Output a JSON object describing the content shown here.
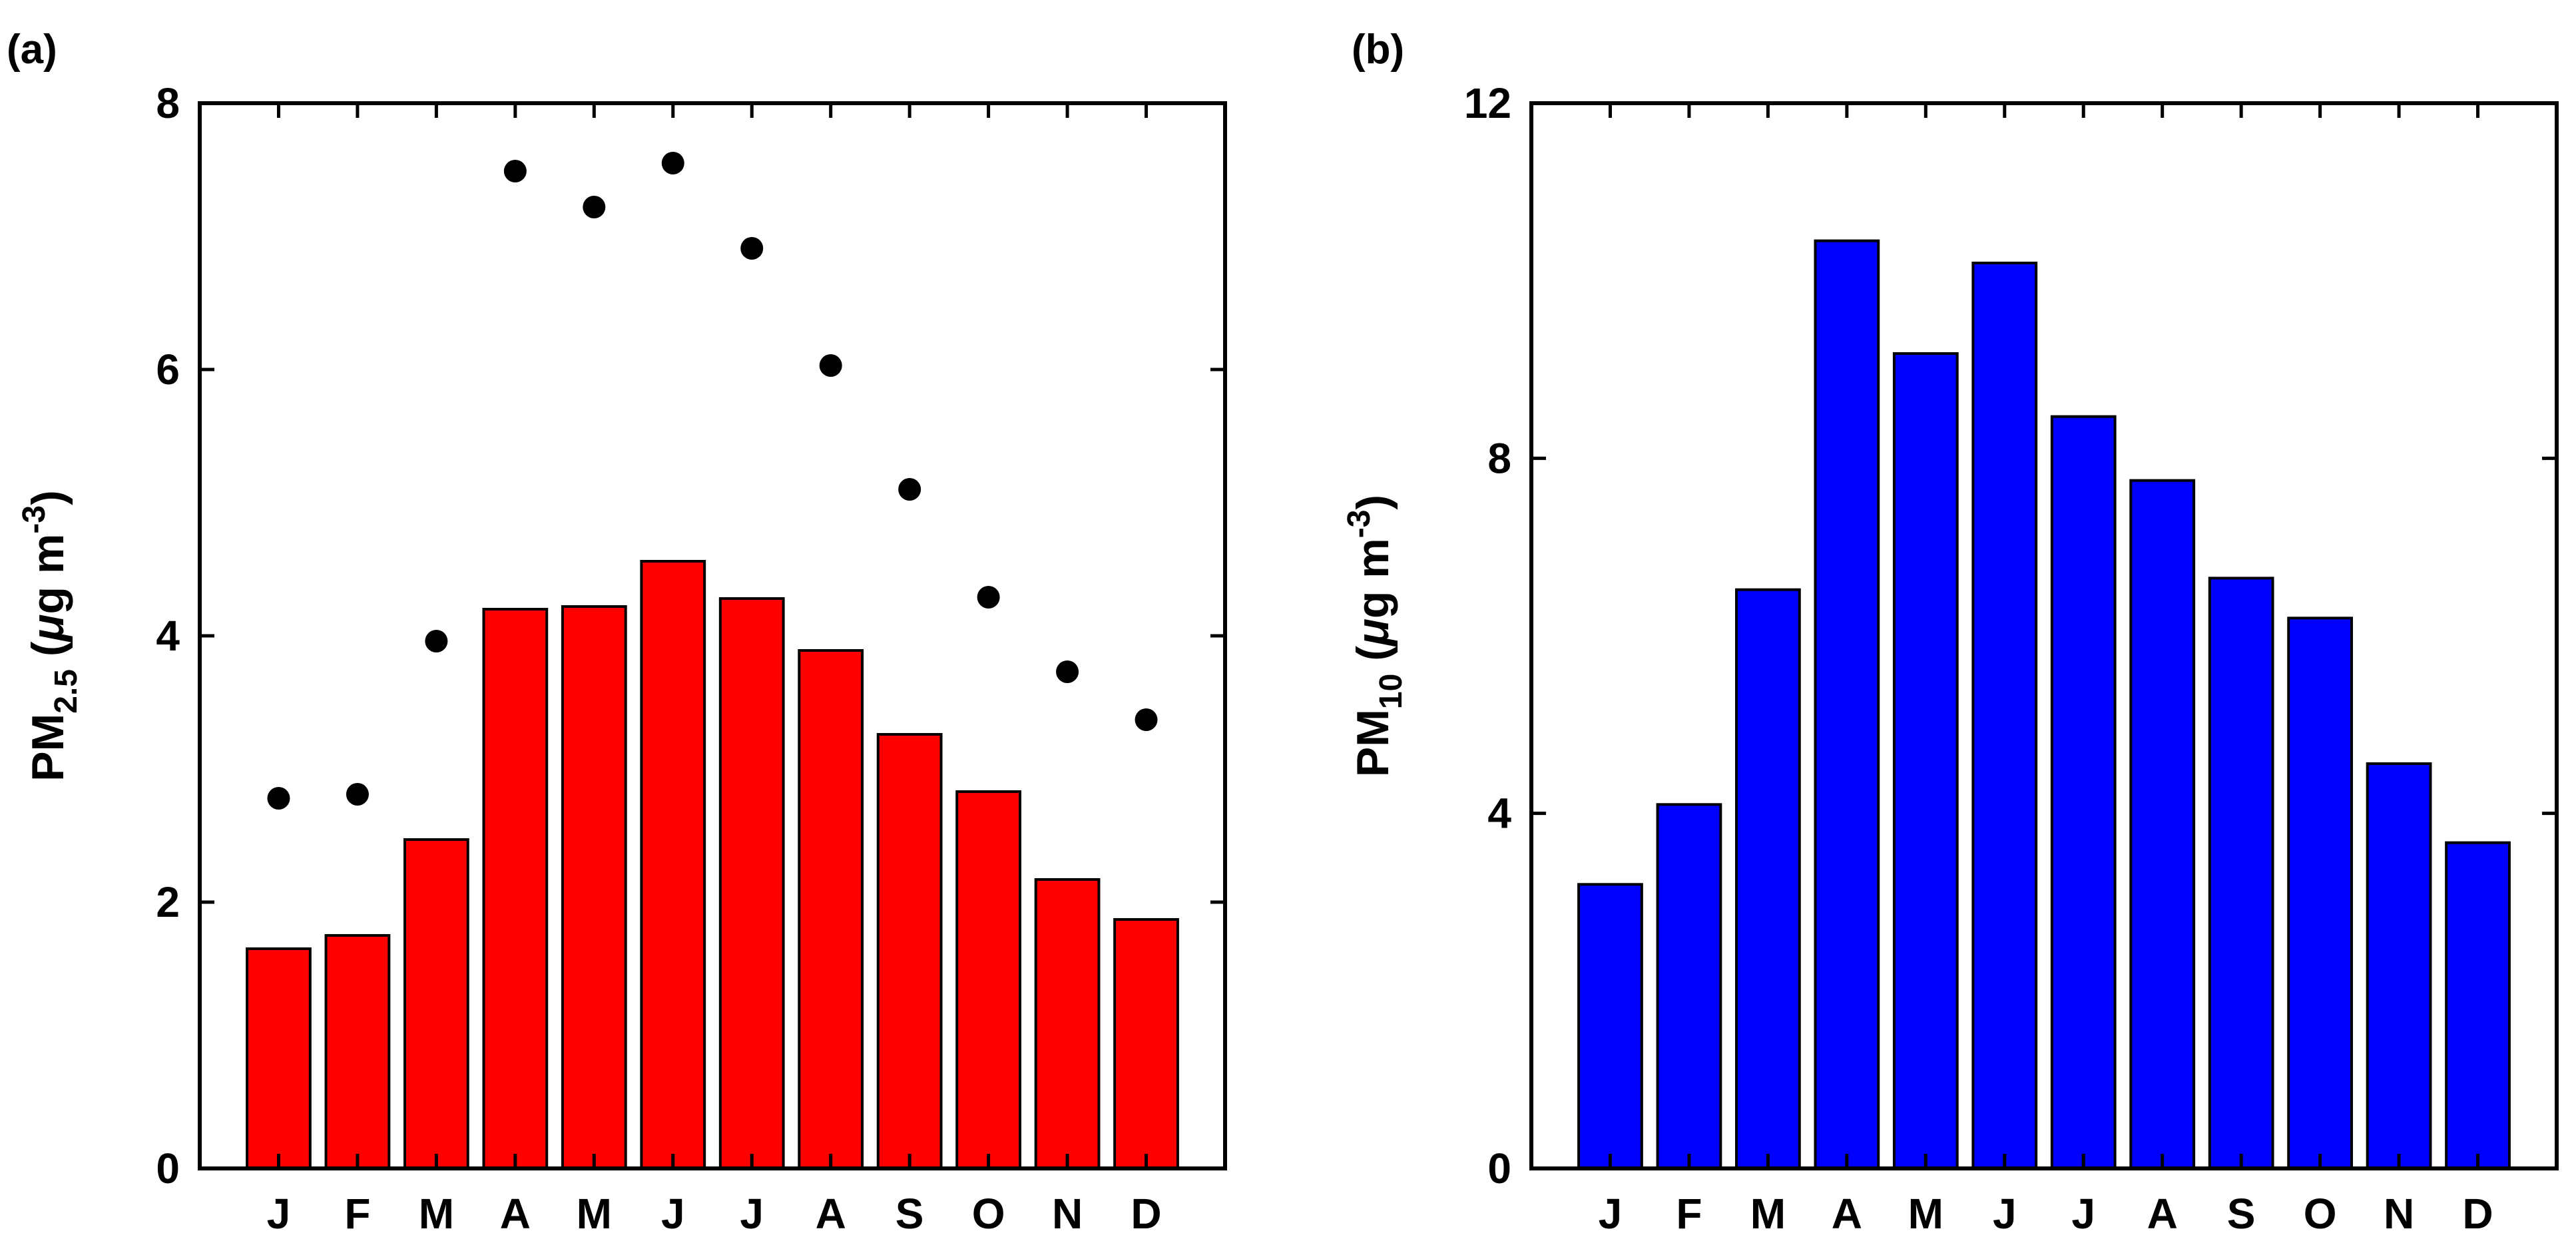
{
  "chart_data": [
    {
      "panel": "(a)",
      "type": "bar",
      "categories": [
        "J",
        "F",
        "M",
        "A",
        "M",
        "J",
        "J",
        "A",
        "S",
        "O",
        "N",
        "D"
      ],
      "series": [
        {
          "name": "bars",
          "kind": "bar",
          "color": "#ff0000",
          "values": [
            1.65,
            1.75,
            2.47,
            4.2,
            4.22,
            4.56,
            4.28,
            3.89,
            3.26,
            2.83,
            2.17,
            1.87
          ]
        },
        {
          "name": "dots",
          "kind": "scatter",
          "color": "#000000",
          "values": [
            2.78,
            2.81,
            3.96,
            7.49,
            7.22,
            7.55,
            6.91,
            6.03,
            5.1,
            4.29,
            3.73,
            3.37
          ]
        }
      ],
      "ylabel": {
        "prefix": "PM",
        "sub": "2.5",
        "mid": " (",
        "mu": "μ",
        "unit": "g m",
        "sup": "-3",
        "suffix": ")"
      },
      "ylim": [
        0,
        8
      ],
      "yticks": [
        "0",
        "2",
        "4",
        "6",
        "8"
      ]
    },
    {
      "panel": "(b)",
      "type": "bar",
      "categories": [
        "J",
        "F",
        "M",
        "A",
        "M",
        "J",
        "J",
        "A",
        "S",
        "O",
        "N",
        "D"
      ],
      "series": [
        {
          "name": "bars",
          "kind": "bar",
          "color": "#0000ff",
          "values": [
            3.2,
            4.1,
            6.52,
            10.45,
            9.18,
            10.2,
            8.47,
            7.75,
            6.65,
            6.2,
            4.56,
            3.67
          ]
        }
      ],
      "ylabel": {
        "prefix": "PM",
        "sub": "10",
        "mid": " (",
        "mu": "μ",
        "unit": "g m",
        "sup": "-3",
        "suffix": ")"
      },
      "ylim": [
        0,
        12
      ],
      "yticks": [
        "0",
        "4",
        "8",
        "12"
      ]
    }
  ]
}
